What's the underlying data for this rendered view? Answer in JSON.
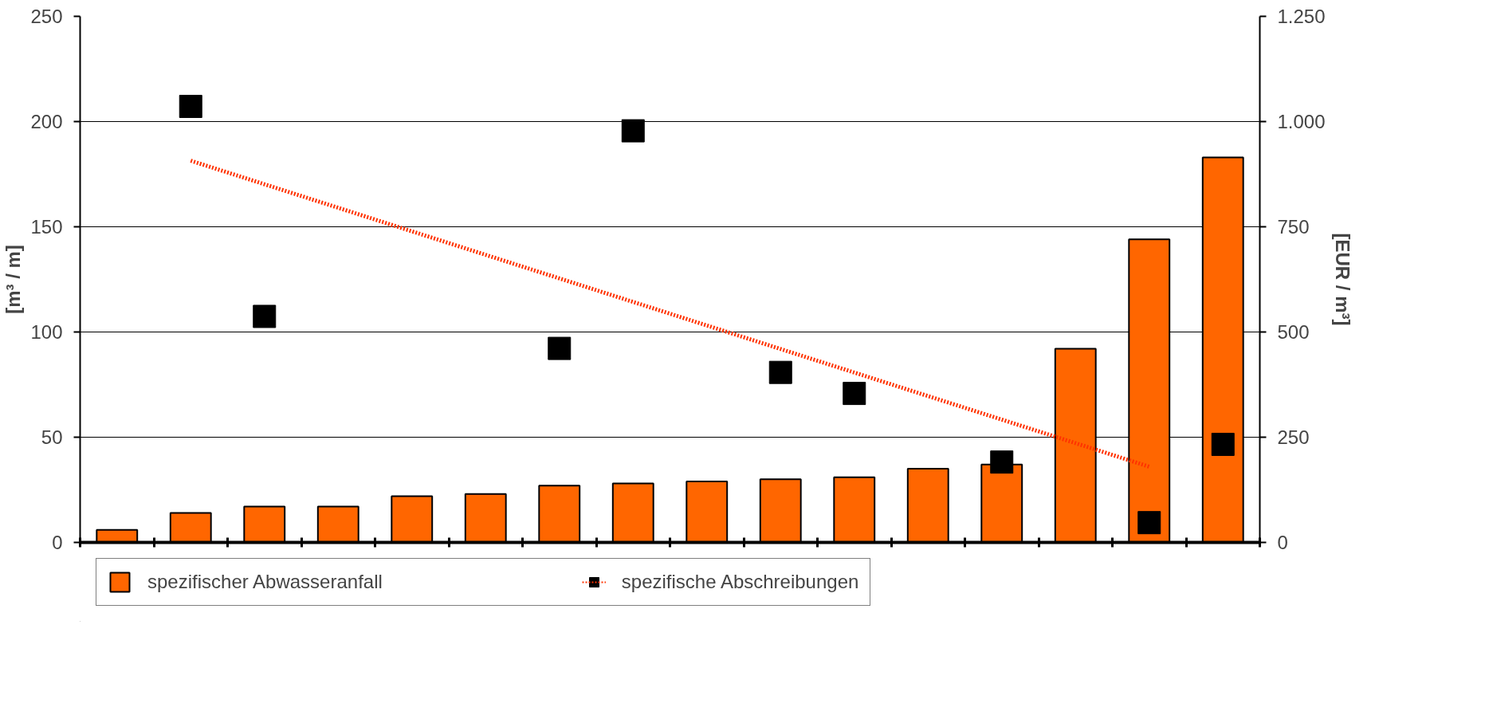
{
  "chart_data": {
    "type": "bar",
    "categories": [
      null,
      null,
      null,
      null,
      null,
      null,
      null,
      null,
      null,
      null,
      null,
      null,
      null,
      null,
      null,
      null
    ],
    "series": [
      {
        "name": "spezifischer Abwasseranfall",
        "color": "#ff6600",
        "values": [
          6,
          14,
          17,
          17,
          22,
          23,
          27,
          28,
          29,
          30,
          31,
          35,
          37,
          92,
          144,
          183
        ]
      },
      {
        "name": "spezifische Abschreibungen",
        "type": "scatter",
        "axis": "y2",
        "color": "#000000",
        "marker": "square",
        "values": [
          null,
          1036,
          537,
          null,
          null,
          null,
          461,
          978,
          null,
          404,
          354,
          null,
          191,
          null,
          47,
          233
        ]
      },
      {
        "type": "line",
        "axis": "y2",
        "color": "#ff3300",
        "line_style": "dotted",
        "values": [
          null,
          907,
          null,
          null,
          null,
          null,
          null,
          null,
          null,
          null,
          null,
          null,
          null,
          null,
          180,
          null
        ]
      }
    ],
    "ylim": [
      0,
      250
    ],
    "yticks": [
      0,
      50,
      100,
      150,
      200,
      250
    ],
    "y2lim": [
      0,
      1250
    ],
    "y2ticks": [
      0,
      250,
      500,
      750,
      {
        "value": 1000,
        "label": "1.000"
      },
      {
        "value": 1250,
        "label": "1.250"
      }
    ],
    "ylabel": "[m³ / m]",
    "y2label": "[EUR / m³]",
    "grid": "y",
    "legend": "bottom"
  }
}
